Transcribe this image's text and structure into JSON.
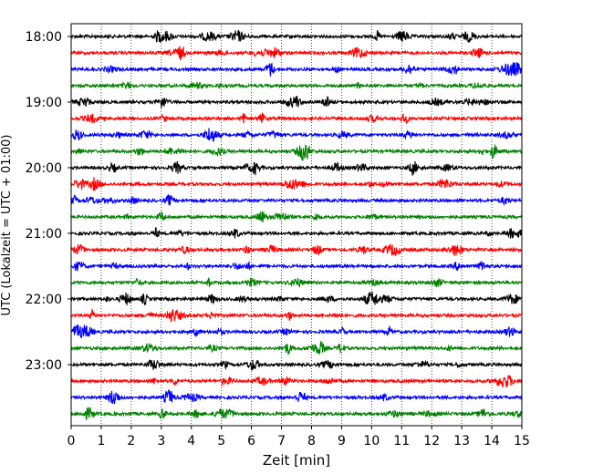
{
  "chart_data": {
    "type": "line",
    "title": "",
    "xlabel": "Zeit  [min]",
    "ylabel": "UTC (Lokalzeit = UTC + 01:00)",
    "xlim": [
      0,
      15
    ],
    "x_ticks": [
      0,
      1,
      2,
      3,
      4,
      5,
      6,
      7,
      8,
      9,
      10,
      11,
      12,
      13,
      14,
      15
    ],
    "x_tick_labels": [
      "0",
      "1",
      "2",
      "3",
      "4",
      "5",
      "6",
      "7",
      "8",
      "9",
      "10",
      "11",
      "12",
      "13",
      "14",
      "15"
    ],
    "y_tick_labels": [
      "18:00",
      "19:00",
      "20:00",
      "21:00",
      "22:00",
      "23:00"
    ],
    "trace_colors": [
      "#000000",
      "#ff0000",
      "#0000ff",
      "#008000"
    ],
    "trace_count": 24,
    "trace_interval_min": 15,
    "grid": "vertical dotted at each minute",
    "legend": "none"
  }
}
